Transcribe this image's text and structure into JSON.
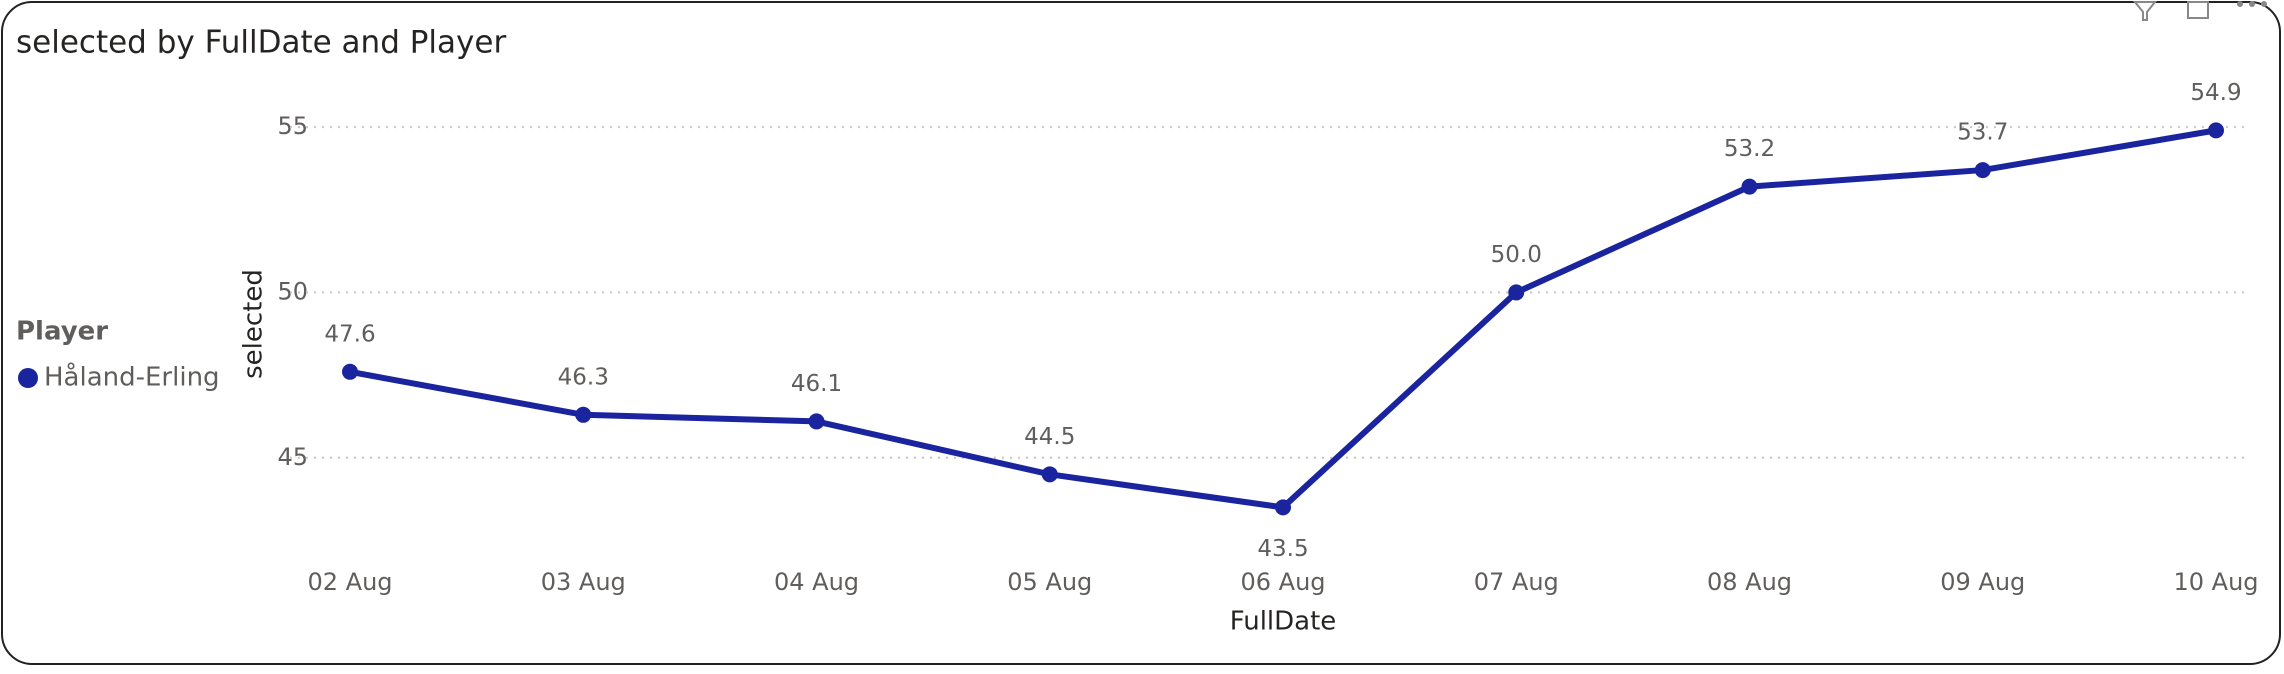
{
  "chart_data": {
    "type": "line",
    "title": "selected by FullDate and Player",
    "x_label": "FullDate",
    "y_label": "selected",
    "legend_title": "Player",
    "legend_position": "left",
    "categories": [
      "02 Aug",
      "03 Aug",
      "04 Aug",
      "05 Aug",
      "06 Aug",
      "07 Aug",
      "08 Aug",
      "09 Aug",
      "10 Aug"
    ],
    "series": [
      {
        "name": "Håland-Erling",
        "color": "#1b249f",
        "values": [
          47.6,
          46.3,
          46.1,
          44.5,
          43.5,
          50,
          53.2,
          53.7,
          54.9
        ],
        "value_labels": [
          "47.6",
          "46.3",
          "46.1",
          "44.5",
          "43.5",
          "50.0",
          "53.2",
          "53.7",
          "54.9"
        ]
      }
    ],
    "ylim": [
      42,
      56
    ],
    "yticks": [
      45,
      50,
      55
    ],
    "grid": true
  }
}
